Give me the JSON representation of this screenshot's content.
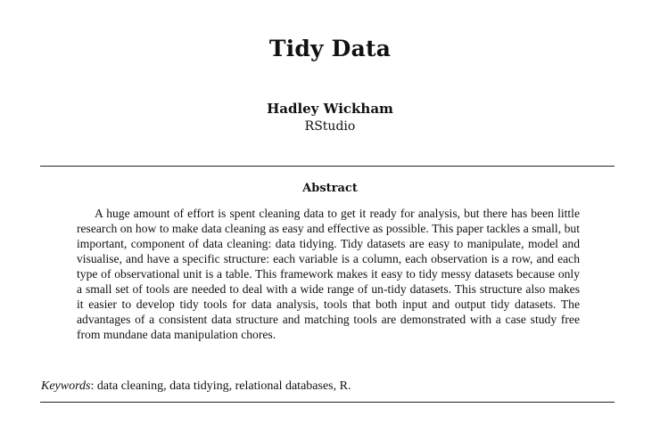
{
  "paper": {
    "title": "Tidy Data",
    "author": "Hadley Wickham",
    "affiliation": "RStudio"
  },
  "abstract": {
    "heading": "Abstract",
    "text": "A huge amount of effort is spent cleaning data to get it ready for analysis, but there has been little research on how to make data cleaning as easy and effective as possible. This paper tackles a small, but important, component of data cleaning: data tidying. Tidy datasets are easy to manipulate, model and visualise, and have a specific structure: each variable is a column, each observation is a row, and each type of observational unit is a table. This framework makes it easy to tidy messy datasets because only a small set of tools are needed to deal with a wide range of un-tidy datasets. This structure also makes it easier to develop tidy tools for data analysis, tools that both input and output tidy datasets. The advantages of a consistent data structure and matching tools are demonstrated with a case study free from mundane data manipulation chores."
  },
  "keywords": {
    "label": "Keywords",
    "separator": ": ",
    "values": "data cleaning, data tidying, relational databases, R."
  }
}
